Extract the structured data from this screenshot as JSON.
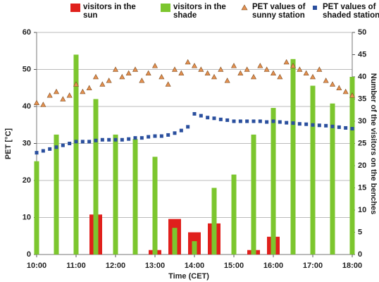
{
  "chart_data": {
    "type": "combo",
    "xlabel": "Time (CET)",
    "ylabel": "PET [°C]",
    "y2label": "Number of the visitors on the benches",
    "xlim": [
      "10:00",
      "18:00"
    ],
    "xticks": [
      "10:00",
      "11:00",
      "12:00",
      "13:00",
      "14:00",
      "15:00",
      "16:00",
      "17:00",
      "18:00"
    ],
    "ylim": [
      0,
      60
    ],
    "yticks": [
      0,
      10,
      20,
      30,
      40,
      50,
      60
    ],
    "y2lim": [
      0,
      50
    ],
    "y2ticks": [
      0,
      5,
      10,
      15,
      20,
      25,
      30,
      35,
      40,
      45,
      50
    ],
    "grid": true,
    "series": [
      {
        "name": "visitors in the sun",
        "type": "bar",
        "axis": "y2",
        "color": "#e0201c",
        "width": 18,
        "x": [
          "10:00",
          "10:30",
          "11:00",
          "11:30",
          "12:00",
          "12:30",
          "13:00",
          "13:30",
          "14:00",
          "14:30",
          "15:00",
          "15:30",
          "16:00",
          "16:30",
          "17:00",
          "17:30",
          "18:00"
        ],
        "values": [
          0,
          0,
          0,
          9,
          0,
          0,
          1,
          8,
          5,
          7,
          0,
          1,
          4,
          0,
          0,
          0,
          0
        ]
      },
      {
        "name": "visitors in the shade",
        "type": "bar",
        "axis": "y2",
        "color": "#7cc62e",
        "width": 7,
        "x": [
          "10:00",
          "10:30",
          "11:00",
          "11:30",
          "12:00",
          "12:30",
          "13:00",
          "13:30",
          "14:00",
          "14:30",
          "15:00",
          "15:30",
          "16:00",
          "16:30",
          "17:00",
          "17:30",
          "18:00"
        ],
        "values": [
          21,
          27,
          45,
          35,
          27,
          26,
          22,
          6,
          3,
          15,
          18,
          27,
          33,
          44,
          38,
          34,
          40
        ]
      },
      {
        "name": "PET values of sunny station",
        "type": "triangle",
        "axis": "y",
        "color": "#e39050",
        "x": [
          "10:00",
          "10:10",
          "10:20",
          "10:30",
          "10:40",
          "10:50",
          "11:00",
          "11:10",
          "11:20",
          "11:30",
          "11:40",
          "11:50",
          "12:00",
          "12:10",
          "12:20",
          "12:30",
          "12:40",
          "12:50",
          "13:00",
          "13:10",
          "13:20",
          "13:30",
          "13:40",
          "13:50",
          "14:00",
          "14:10",
          "14:20",
          "14:30",
          "14:40",
          "14:50",
          "15:00",
          "15:10",
          "15:20",
          "15:30",
          "15:40",
          "15:50",
          "16:00",
          "16:10",
          "16:20",
          "16:30",
          "16:40",
          "16:50",
          "17:00",
          "17:10",
          "17:20",
          "17:30",
          "17:40",
          "17:50",
          "18:00"
        ],
        "values": [
          41,
          40.5,
          43,
          44,
          42,
          43,
          46,
          44,
          45,
          48,
          46,
          47,
          50,
          48,
          49,
          50,
          47,
          49,
          51,
          48,
          46,
          50,
          49,
          52,
          51,
          50,
          49,
          48,
          50,
          47,
          51,
          49,
          50,
          48,
          51,
          50,
          49,
          48,
          52,
          51,
          50,
          49,
          48,
          50,
          47,
          46,
          45,
          44,
          43
        ]
      },
      {
        "name": "PET values of shaded station",
        "type": "square",
        "axis": "y",
        "color": "#2a4f9e",
        "x": [
          "10:00",
          "10:10",
          "10:20",
          "10:30",
          "10:40",
          "10:50",
          "11:00",
          "11:10",
          "11:20",
          "11:30",
          "11:40",
          "11:50",
          "12:00",
          "12:10",
          "12:20",
          "12:30",
          "12:40",
          "12:50",
          "13:00",
          "13:10",
          "13:20",
          "13:30",
          "13:40",
          "13:50",
          "14:00",
          "14:10",
          "14:20",
          "14:30",
          "14:40",
          "14:50",
          "15:00",
          "15:10",
          "15:20",
          "15:30",
          "15:40",
          "15:50",
          "16:00",
          "16:10",
          "16:20",
          "16:30",
          "16:40",
          "16:50",
          "17:00",
          "17:10",
          "17:20",
          "17:30",
          "17:40",
          "17:50",
          "18:00"
        ],
        "values": [
          27.5,
          28,
          28.5,
          29,
          29.5,
          30,
          30.5,
          30.5,
          30.5,
          30.8,
          31,
          31,
          31,
          31,
          31.2,
          31.5,
          31.5,
          31.8,
          32,
          32,
          32.3,
          32.8,
          33.5,
          34.5,
          38,
          37.5,
          37,
          36.8,
          36.5,
          36.3,
          36,
          36,
          36,
          36,
          36,
          35.8,
          36,
          35.8,
          35.6,
          35.5,
          35.3,
          35.2,
          35,
          34.9,
          34.8,
          34.6,
          34.4,
          34.2,
          34
        ]
      }
    ]
  }
}
